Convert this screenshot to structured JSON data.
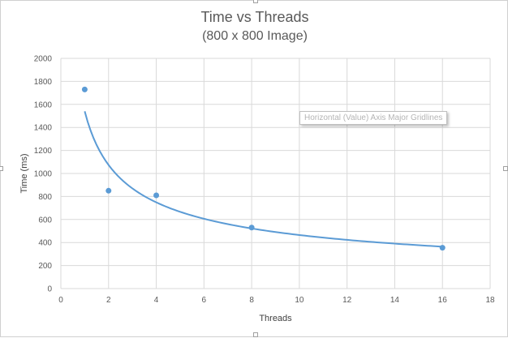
{
  "chart_data": {
    "type": "scatter",
    "title": "Time vs Threads",
    "subtitle": "(800 x 800 Image)",
    "xlabel": "Threads",
    "ylabel": "Time (ms)",
    "xlim": [
      0,
      18
    ],
    "ylim": [
      0,
      2000
    ],
    "x_ticks": [
      "0",
      "2",
      "4",
      "6",
      "8",
      "10",
      "12",
      "14",
      "16",
      "18"
    ],
    "y_ticks": [
      "0",
      "200",
      "400",
      "600",
      "800",
      "1000",
      "1200",
      "1400",
      "1600",
      "1800",
      "2000"
    ],
    "grid": true,
    "legend": "none",
    "marker_color": "#5B9BD5",
    "trendline_color": "#5B9BD5",
    "trendline": {
      "type": "power",
      "coefficient": 1540,
      "exponent": -0.52,
      "x_range": [
        1,
        16
      ]
    },
    "series": [
      {
        "x": [
          1,
          2,
          4,
          8,
          16
        ],
        "y": [
          1730,
          850,
          810,
          530,
          355
        ]
      }
    ]
  },
  "tooltip": {
    "text": "Horizontal (Value) Axis Major Gridlines"
  }
}
